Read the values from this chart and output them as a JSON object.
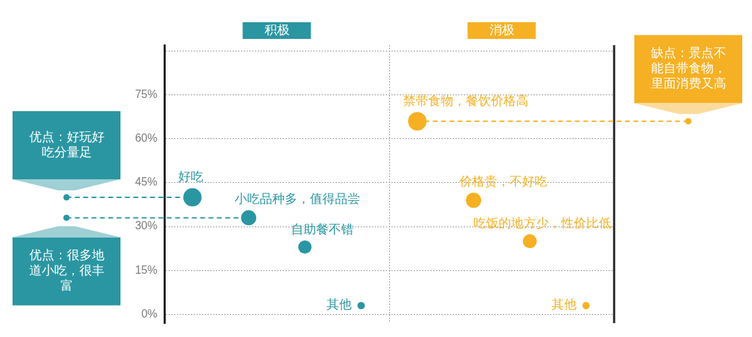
{
  "chart_data": {
    "type": "bubble",
    "categories": [
      null,
      null,
      null,
      null,
      null,
      null,
      null,
      null
    ],
    "series": [
      {
        "name": "积极",
        "color": "#2a96a2",
        "values": [
          40,
          33,
          23,
          3,
          null,
          null,
          null,
          null
        ],
        "sizes": [
          0.98,
          0.67,
          0.52,
          0.16,
          null,
          null,
          null,
          null
        ],
        "value_labels": [
          "好吃",
          "小吃品种多，值得品尝",
          "自助餐不错",
          "其他",
          null,
          null,
          null,
          null
        ]
      },
      {
        "name": "消极",
        "color": "#f6b023",
        "values": [
          null,
          null,
          null,
          null,
          66,
          39,
          25,
          3
        ],
        "sizes": [
          null,
          null,
          null,
          null,
          1,
          0.68,
          0.57,
          0.15
        ],
        "value_labels": [
          null,
          null,
          null,
          null,
          "禁带食物，餐饮价格高",
          "价格贵，不好吃",
          "吃饭的地方少，性价比低",
          "其他"
        ]
      }
    ],
    "ylim": [
      -3,
      92
    ],
    "yticks": [
      {
        "value": 0,
        "label": "0%"
      },
      {
        "value": 15,
        "label": "15%"
      },
      {
        "value": 30,
        "label": "30%"
      },
      {
        "value": 45,
        "label": "45%"
      },
      {
        "value": 60,
        "label": "60%"
      },
      {
        "value": 75,
        "label": "75%"
      },
      {
        "value": 90,
        "label": null
      }
    ],
    "grid": "y",
    "tick_labels": "y",
    "legend": "top",
    "annotations": [
      "优点：好玩好吃分量足",
      "优点：很多地道小吃，很丰富",
      "缺点：景点不能自带食物，里面消费又高"
    ]
  }
}
